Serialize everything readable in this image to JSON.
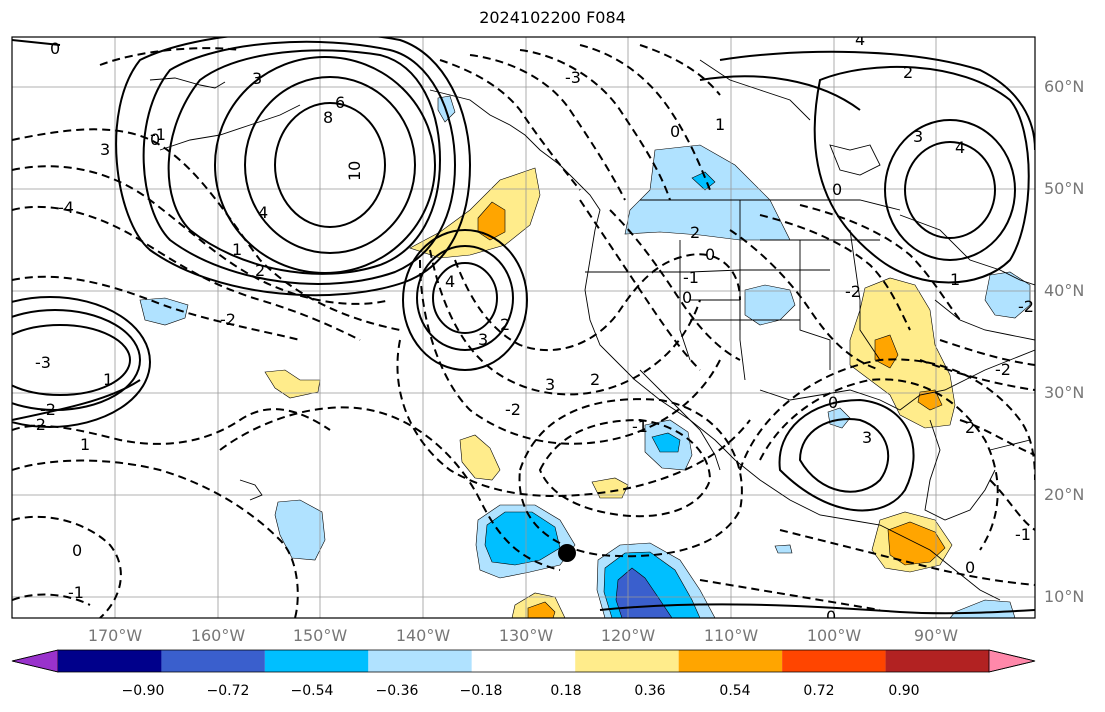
{
  "title": "2024102200 F084",
  "lat_labels": [
    "60°N",
    "50°N",
    "40°N",
    "30°N",
    "20°N",
    "10°N"
  ],
  "lon_labels": [
    "170°W",
    "160°W",
    "150°W",
    "140°W",
    "130°W",
    "120°W",
    "110°W",
    "100°W",
    "90°W"
  ],
  "colorbar": {
    "tick_labels": [
      "−0.90",
      "−0.72",
      "−0.54",
      "−0.36",
      "−0.18",
      "0.18",
      "0.36",
      "0.54",
      "0.72",
      "0.90"
    ],
    "colors": [
      "#9932cc",
      "#00008b",
      "#3a5fcd",
      "#00bfff",
      "#b0e2ff",
      "#ffffff",
      "#ffec8b",
      "#ffa500",
      "#ff4500",
      "#b22222",
      "#ff88aa"
    ]
  },
  "contour_labels": [
    "0",
    "3",
    "6",
    "8",
    "10",
    "4",
    "1",
    "2",
    "-1",
    "-2",
    "-4",
    "3",
    "0",
    "-3",
    "4",
    "3",
    "2",
    "0",
    "-1",
    "0",
    "2",
    "-2",
    "1",
    "-2",
    "1",
    "-3",
    "0",
    "-1",
    "-2",
    "-1",
    "0",
    "4",
    "3",
    "2",
    "0",
    "1",
    "-2",
    "-2",
    "4",
    "3",
    "2",
    "0",
    "-1",
    "-2",
    "3",
    "2",
    "0",
    "0",
    "1"
  ],
  "marker": "storm-center"
}
